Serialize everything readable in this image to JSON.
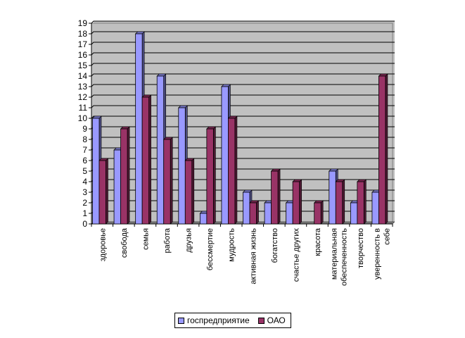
{
  "chart_data": {
    "type": "bar",
    "categories": [
      "здоровье",
      "свобода",
      "семья",
      "работа",
      "друзья",
      "бессмертие",
      "мудрость",
      "активная жизнь",
      "богатство",
      "счастье других",
      "красота",
      [
        "материальная",
        "обеспеченность"
      ],
      "творчество",
      [
        "уверенность в",
        "себе"
      ]
    ],
    "series": [
      {
        "name": "госпредприятие",
        "values": [
          10,
          7,
          18,
          14,
          11,
          1,
          13,
          3,
          2,
          2,
          0,
          5,
          2,
          3
        ]
      },
      {
        "name": "ОАО",
        "values": [
          6,
          9,
          12,
          8,
          6,
          9,
          10,
          2,
          5,
          4,
          2,
          4,
          4,
          14
        ]
      }
    ],
    "ylim": [
      0,
      19
    ],
    "yticks": [
      0,
      1,
      2,
      3,
      4,
      5,
      6,
      7,
      8,
      9,
      10,
      11,
      12,
      13,
      14,
      15,
      16,
      17,
      18,
      19
    ],
    "grid": true,
    "legend_position": "bottom",
    "colors": {
      "series_0": "#9999ff",
      "series_1": "#993366",
      "plot_background": "#c0c0c0",
      "gridline": "#000000"
    }
  }
}
